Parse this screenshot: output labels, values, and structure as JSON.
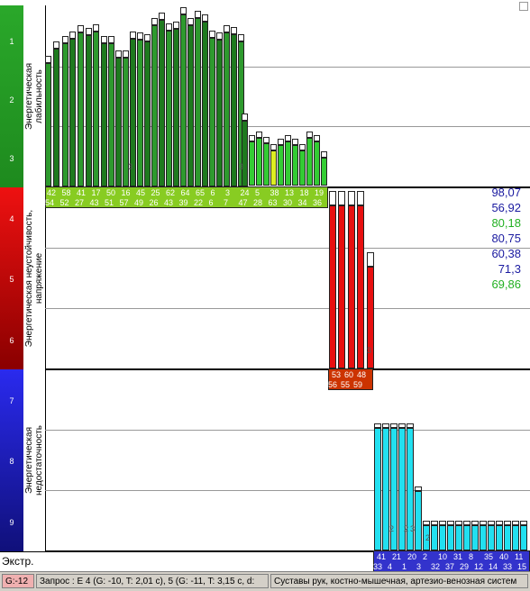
{
  "zones": [
    {
      "label": "Энергетическая лабильность",
      "marks": [
        "1",
        "2",
        "3"
      ]
    },
    {
      "label": "Энергетическая неустойчивость, напряжение",
      "marks": [
        "4",
        "5",
        "6"
      ]
    },
    {
      "label": "Энергетическая недостаточность",
      "marks": [
        "7",
        "8",
        "9"
      ]
    }
  ],
  "extr_label": "Экстр.",
  "values": [
    {
      "text": "98,07",
      "color": "#1a1aa0"
    },
    {
      "text": "56,92",
      "color": "#1a1aa0"
    },
    {
      "text": "80,18",
      "color": "#22b022"
    },
    {
      "text": "80,75",
      "color": "#1a1aa0"
    },
    {
      "text": "60,38",
      "color": "#1a1aa0"
    },
    {
      "text": "71,3",
      "color": "#1a1aa0"
    },
    {
      "text": "69,86",
      "color": "#22b022"
    }
  ],
  "green_labels_top": [
    "42",
    "58",
    "41",
    "17",
    "50",
    "16",
    "45",
    "25",
    "62",
    "64",
    "65",
    "6",
    "3",
    "24",
    "5",
    "38",
    "13",
    "18",
    "19"
  ],
  "green_labels_bottom": [
    "54",
    "52",
    "27",
    "43",
    "51",
    "57",
    "49",
    "26",
    "43",
    "39",
    "22",
    "6",
    "7",
    "47",
    "28",
    "63",
    "30",
    "34",
    "36"
  ],
  "red_labels_top": [
    "53",
    "60",
    "48"
  ],
  "red_labels_bottom": [
    "56",
    "55",
    "59"
  ],
  "blue_labels_top": [
    "41",
    "21",
    "20",
    "2",
    "10",
    "31",
    "8",
    "35",
    "40",
    "11"
  ],
  "blue_labels_bottom": [
    "33",
    "4",
    "1",
    "3",
    "32",
    "37",
    "29",
    "12",
    "14",
    "33",
    "15"
  ],
  "inner_marks": {
    "green_a": "3",
    "green_b": "3",
    "red": "3",
    "blue_a": "2",
    "blue_b": "2",
    "blue_c": "3",
    "blue_d": "2"
  },
  "status": {
    "g": "G:-12",
    "query": "Запрос : E 4 (G: -10, T: 2,01 c), 5 (G: -11, T: 3,15 c, d:",
    "organs": "Суставы рук, костно-мышечная, артезио-венозная систем"
  },
  "colors": {
    "green_zone": "#2fb52f",
    "red_zone": "#e01010",
    "blue_zone": "#2222cc",
    "dark_green_bar": "#1e7a1e",
    "light_green_bar": "#33cc33",
    "red_bar": "#e81010",
    "cyan_bar": "#22e0f0"
  }
}
